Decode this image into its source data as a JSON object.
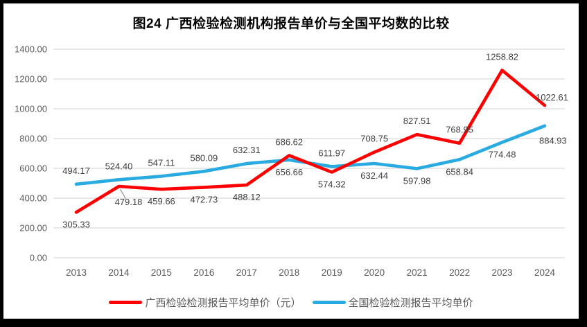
{
  "title": "图24  广西检验检测机构报告单价与全国平均数的比较",
  "colors": {
    "guangxi_line": "#FE0000",
    "national_line": "#29ABE2",
    "gridline": "#D9D9D9",
    "axis_text": "#595959",
    "data_label_text": "#404040",
    "leader_line": "#A6A6A6",
    "frame_border": "#000000",
    "background": "#FFFFFF"
  },
  "chart_data": {
    "type": "line",
    "title": "图24  广西检验检测机构报告单价与全国平均数的比较",
    "categories": [
      "2013",
      "2014",
      "2015",
      "2016",
      "2017",
      "2018",
      "2019",
      "2020",
      "2021",
      "2022",
      "2023",
      "2024"
    ],
    "series": [
      {
        "name": "广西检验检测报告平均单价（元）",
        "color": "#FE0000",
        "values": [
          305.33,
          479.18,
          459.66,
          472.73,
          488.12,
          686.62,
          574.32,
          708.75,
          827.51,
          768.95,
          1258.82,
          1022.61
        ],
        "label_positions": [
          "below",
          "below-leader",
          "below",
          "below",
          "below",
          "above",
          "below",
          "above",
          "above",
          "above",
          "above",
          "right-above"
        ]
      },
      {
        "name": "全国检验检测报告平均单价",
        "color": "#29ABE2",
        "values": [
          494.17,
          524.4,
          547.11,
          580.09,
          632.31,
          656.66,
          611.97,
          632.44,
          597.98,
          658.84,
          774.48,
          884.93
        ],
        "label_positions": [
          "above",
          "above",
          "above",
          "above",
          "above",
          "below",
          "above",
          "below",
          "below",
          "below",
          "below",
          "right-below"
        ]
      }
    ],
    "xlabel": "",
    "ylabel": "",
    "ylim": [
      0,
      1400
    ],
    "y_tick_step": 200,
    "y_tick_labels": [
      "0.00",
      "200.00",
      "400.00",
      "600.00",
      "800.00",
      "1000.00",
      "1200.00",
      "1400.00"
    ],
    "grid": true,
    "legend_position": "bottom",
    "data_labels_decimals": 2
  }
}
